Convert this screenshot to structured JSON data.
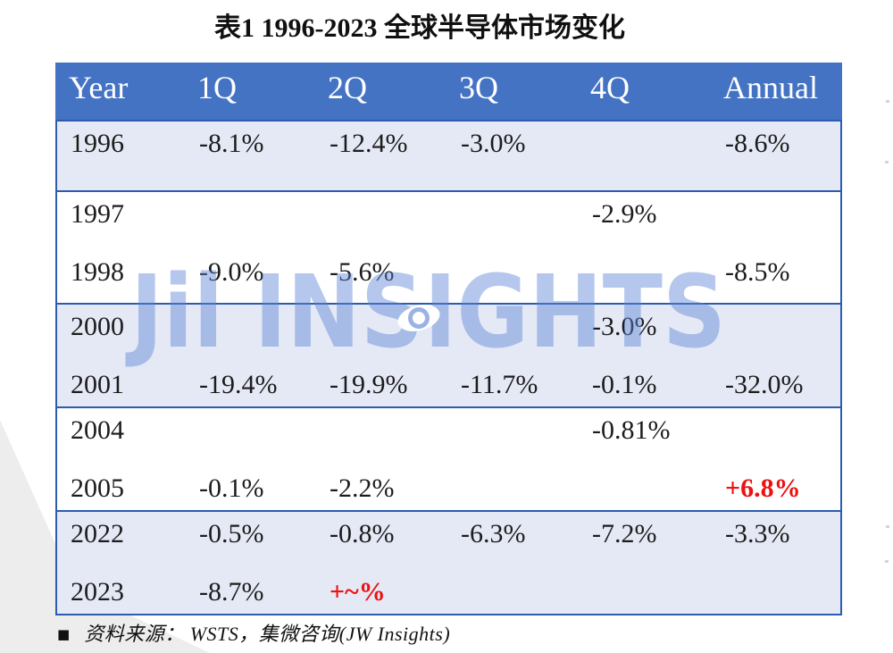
{
  "chart_data": {
    "type": "table",
    "title": "表1  1996-2023 全球半导体市场变化",
    "columns": [
      "Year",
      "1Q",
      "2Q",
      "3Q",
      "4Q",
      "Annual"
    ],
    "rows": [
      [
        "1996",
        "-8.1%",
        "-12.4%",
        "-3.0%",
        "",
        "-8.6%"
      ],
      [
        "1997",
        "",
        "",
        "",
        "-2.9%",
        ""
      ],
      [
        "1998",
        "-9.0%",
        "-5.6%",
        "",
        "",
        "-8.5%"
      ],
      [
        "2000",
        "",
        "",
        "",
        "-3.0%",
        ""
      ],
      [
        "2001",
        "-19.4%",
        "-19.9%",
        "-11.7%",
        "-0.1%",
        "-32.0%"
      ],
      [
        "2004",
        "",
        "",
        "",
        "-0.81%",
        ""
      ],
      [
        "2005",
        "-0.1%",
        "-2.2%",
        "",
        "",
        "+6.8%"
      ],
      [
        "2022",
        "-0.5%",
        "-0.8%",
        "-6.3%",
        "-7.2%",
        "-3.3%"
      ],
      [
        "2023",
        "-8.7%",
        "+~%",
        "",
        "",
        ""
      ]
    ]
  },
  "watermark": {
    "text": "Jil INSIGHTS"
  },
  "footer": {
    "bullet": "■",
    "text": "资料来源：  WSTS，集微咨询(JW Insights)"
  },
  "colors": {
    "header_bg": "#4573C4",
    "section_border": "#2B5CB0",
    "row_alt_bg": "#E5E9F5",
    "red_highlight": "#EE1111",
    "watermark_blue": "#B5C8ED",
    "header_text": "#FFFFFF"
  }
}
